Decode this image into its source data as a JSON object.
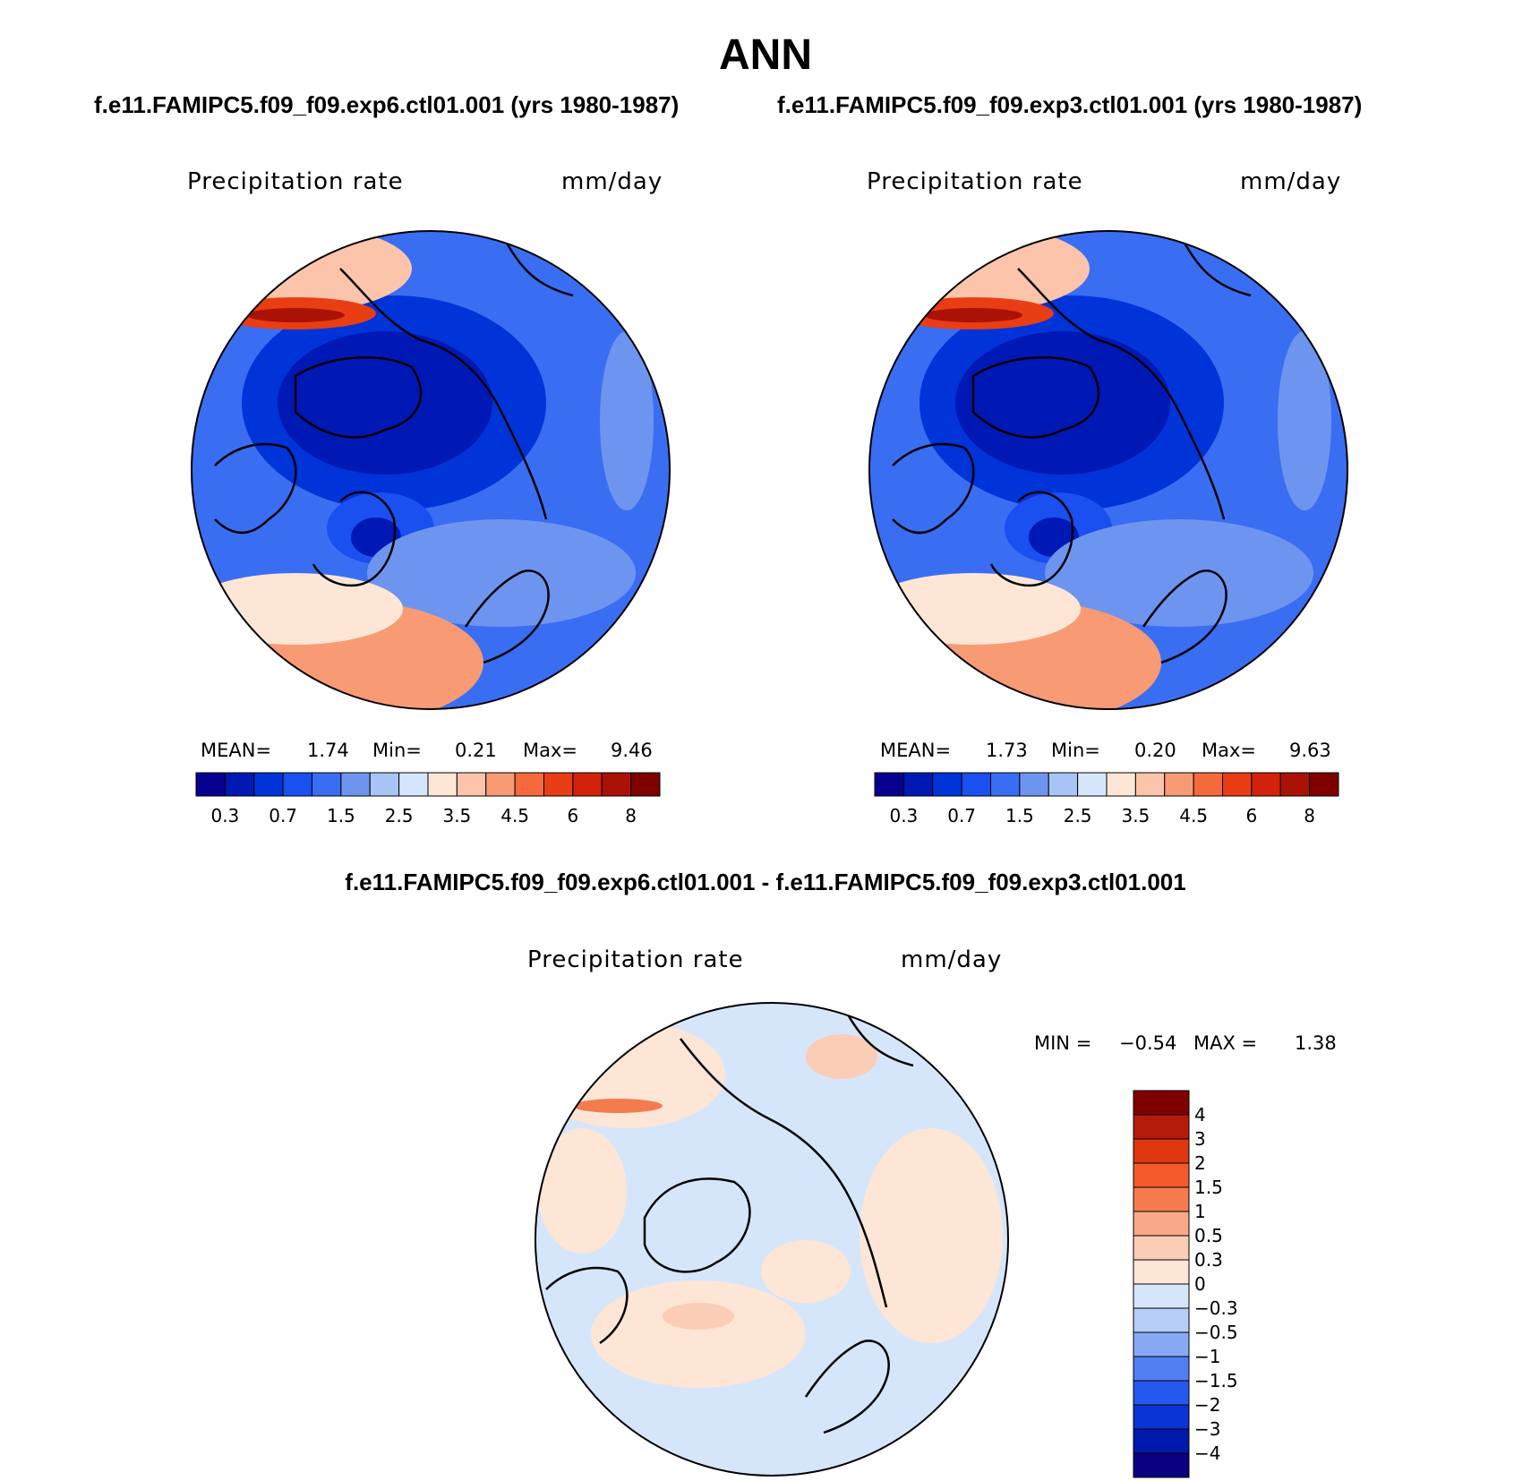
{
  "title": "ANN",
  "panels": [
    {
      "case": "f.e11.FAMIPC5.f09_f09.exp6.ctl01.001 (yrs 1980-1987)",
      "variable": "Precipitation rate",
      "units": "mm/day",
      "stats": {
        "mean_label": "MEAN=",
        "mean": "1.74",
        "min_label": "Min=",
        "min": "0.21",
        "max_label": "Max=",
        "max": "9.46"
      }
    },
    {
      "case": "f.e11.FAMIPC5.f09_f09.exp3.ctl01.001 (yrs 1980-1987)",
      "variable": "Precipitation rate",
      "units": "mm/day",
      "stats": {
        "mean_label": "MEAN=",
        "mean": "1.73",
        "min_label": "Min=",
        "min": "0.20",
        "max_label": "Max=",
        "max": "9.63"
      }
    }
  ],
  "diff": {
    "case": "f.e11.FAMIPC5.f09_f09.exp6.ctl01.001 - f.e11.FAMIPC5.f09_f09.exp3.ctl01.001",
    "variable": "Precipitation rate",
    "units": "mm/day",
    "stats": {
      "min_label": "MIN =",
      "min": "−0.54",
      "max_label": "MAX =",
      "max": "1.38"
    }
  },
  "colorbar_main": {
    "ticks": [
      "0.3",
      "0.7",
      "1.5",
      "2.5",
      "3.5",
      "4.5",
      "6",
      "8"
    ],
    "colors": [
      "#08008f",
      "#0018b4",
      "#0033d8",
      "#1a4ff0",
      "#3a6ef2",
      "#6d95f0",
      "#a8c4f5",
      "#d6e6fa",
      "#fde6d6",
      "#fcc4aa",
      "#f89a74",
      "#f46a3c",
      "#e93d14",
      "#d2220b",
      "#aa1206",
      "#800000"
    ]
  },
  "colorbar_diff": {
    "ticks": [
      "4",
      "3",
      "2",
      "1.5",
      "1",
      "0.5",
      "0.3",
      "0",
      "−0.3",
      "−0.5",
      "−1",
      "−1.5",
      "−2",
      "−3",
      "−4"
    ],
    "colors": [
      "#800000",
      "#b51b08",
      "#de3710",
      "#f55a2a",
      "#f47b4e",
      "#f7a98a",
      "#fbcdb6",
      "#fde6d6",
      "#d6e6fa",
      "#b5cdf7",
      "#87a9f3",
      "#4f7ff0",
      "#2657ee",
      "#0a35d4",
      "#0019ad",
      "#0a0080"
    ]
  },
  "map_colors": {
    "panel_base": "#3a6ef2",
    "diff_base": "#d6e6fa",
    "diff_warm": "#fde6d6",
    "coast": "#000000"
  }
}
